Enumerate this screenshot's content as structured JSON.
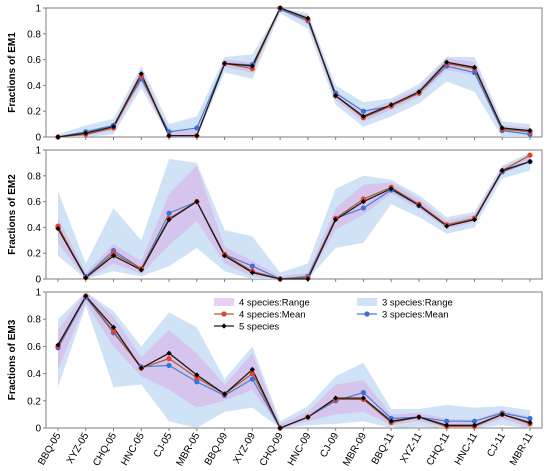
{
  "chart_data": {
    "type": "line",
    "categories": [
      "BBQ-05",
      "XYZ-05",
      "CHQ-05",
      "HNC-05",
      "CJ-05",
      "MBR-05",
      "BBQ-09",
      "XYZ-09",
      "CHQ-09",
      "HNC-09",
      "CJ-09",
      "MBR-09",
      "BBQ-11",
      "XYZ-11",
      "CHQ-11",
      "HNC-11",
      "CJ-11",
      "MBR-11"
    ],
    "legend": {
      "placement": "top-center",
      "entries": [
        "4 species:Range",
        "3 species:Range",
        "4 species:Mean",
        "3 species:Mean",
        "5 species"
      ]
    },
    "colors": {
      "range4": "#d8b0e8",
      "range3": "#c8def5",
      "mean4": "#e8402a",
      "mean4_line": "#b05a2a",
      "mean3": "#3a6fe0",
      "mean3_line": "#4a7fd0",
      "s5": "#000000",
      "s5_line": "#1a1a1a"
    },
    "panels": [
      {
        "ylabel": "Fractions of EM1",
        "ylim": [
          0,
          1
        ],
        "yticks": [
          "0",
          "0.2",
          "0.4",
          "0.6",
          "0.8",
          "1"
        ],
        "yvals": [
          0,
          0.2,
          0.4,
          0.6,
          0.8,
          1
        ],
        "show_xlabels": false,
        "show_legend": false,
        "series": {
          "s5": [
            0.0,
            0.03,
            0.08,
            0.49,
            0.01,
            0.01,
            0.57,
            0.55,
            1.0,
            0.92,
            0.32,
            0.16,
            0.25,
            0.35,
            0.58,
            0.54,
            0.07,
            0.05
          ],
          "mean4": [
            0.0,
            0.02,
            0.07,
            0.47,
            0.01,
            0.01,
            0.57,
            0.53,
            1.0,
            0.91,
            0.32,
            0.15,
            0.24,
            0.34,
            0.57,
            0.53,
            0.06,
            0.04
          ],
          "mean3": [
            0.0,
            0.04,
            0.09,
            0.45,
            0.04,
            0.07,
            0.57,
            0.56,
            0.99,
            0.9,
            0.34,
            0.2,
            0.24,
            0.34,
            0.55,
            0.5,
            0.05,
            0.02
          ],
          "range4_lo": [
            0.0,
            0.01,
            0.05,
            0.42,
            0.0,
            0.0,
            0.54,
            0.5,
            0.98,
            0.88,
            0.29,
            0.12,
            0.21,
            0.31,
            0.52,
            0.48,
            0.04,
            0.02
          ],
          "range4_hi": [
            0.01,
            0.05,
            0.1,
            0.52,
            0.05,
            0.06,
            0.6,
            0.58,
            1.0,
            0.94,
            0.36,
            0.2,
            0.28,
            0.38,
            0.61,
            0.58,
            0.09,
            0.07
          ],
          "range3_lo": [
            0.0,
            0.0,
            0.02,
            0.38,
            0.0,
            0.0,
            0.5,
            0.45,
            0.96,
            0.84,
            0.25,
            0.08,
            0.16,
            0.26,
            0.43,
            0.35,
            0.0,
            0.0
          ],
          "range3_hi": [
            0.02,
            0.09,
            0.14,
            0.55,
            0.1,
            0.16,
            0.62,
            0.64,
            1.0,
            0.96,
            0.4,
            0.27,
            0.3,
            0.41,
            0.62,
            0.62,
            0.12,
            0.1
          ]
        }
      },
      {
        "ylabel": "Fractions of EM2",
        "ylim": [
          0,
          1
        ],
        "yticks": [
          "0",
          "0.2",
          "0.4",
          "0.6",
          "0.8",
          "1"
        ],
        "yvals": [
          0,
          0.2,
          0.4,
          0.6,
          0.8,
          1
        ],
        "show_xlabels": false,
        "show_legend": false,
        "series": {
          "s5": [
            0.39,
            0.01,
            0.18,
            0.07,
            0.46,
            0.6,
            0.18,
            0.05,
            0.0,
            0.0,
            0.46,
            0.6,
            0.7,
            0.57,
            0.41,
            0.46,
            0.84,
            0.91
          ],
          "mean4": [
            0.41,
            0.01,
            0.2,
            0.08,
            0.47,
            0.6,
            0.19,
            0.06,
            0.0,
            0.01,
            0.47,
            0.62,
            0.71,
            0.58,
            0.42,
            0.47,
            0.84,
            0.96
          ],
          "mean3": [
            0.4,
            0.02,
            0.22,
            0.08,
            0.51,
            0.6,
            0.19,
            0.1,
            0.0,
            0.02,
            0.47,
            0.55,
            0.69,
            0.57,
            0.42,
            0.47,
            0.83,
            0.91
          ],
          "range4_lo": [
            0.28,
            0.0,
            0.12,
            0.04,
            0.26,
            0.45,
            0.12,
            0.02,
            0.0,
            0.0,
            0.38,
            0.5,
            0.66,
            0.54,
            0.39,
            0.44,
            0.82,
            0.9
          ],
          "range4_hi": [
            0.47,
            0.05,
            0.27,
            0.14,
            0.66,
            0.88,
            0.25,
            0.14,
            0.02,
            0.05,
            0.55,
            0.73,
            0.75,
            0.62,
            0.45,
            0.5,
            0.87,
            0.96
          ],
          "range3_lo": [
            0.18,
            0.0,
            0.06,
            0.02,
            0.1,
            0.24,
            0.06,
            0.0,
            0.0,
            0.0,
            0.24,
            0.28,
            0.58,
            0.48,
            0.35,
            0.4,
            0.78,
            0.84
          ],
          "range3_hi": [
            0.68,
            0.12,
            0.55,
            0.3,
            0.93,
            0.9,
            0.38,
            0.33,
            0.05,
            0.12,
            0.7,
            0.8,
            0.77,
            0.65,
            0.48,
            0.52,
            0.88,
            0.98
          ]
        }
      },
      {
        "ylabel": "Fractions of EM3",
        "ylim": [
          0,
          1
        ],
        "yticks": [
          "0",
          "0.2",
          "0.4",
          "0.6",
          "0.8",
          "1"
        ],
        "yvals": [
          0,
          0.2,
          0.4,
          0.6,
          0.8,
          1
        ],
        "show_xlabels": true,
        "show_legend": true,
        "series": {
          "s5": [
            0.61,
            0.97,
            0.74,
            0.44,
            0.55,
            0.39,
            0.25,
            0.43,
            0.0,
            0.08,
            0.22,
            0.22,
            0.05,
            0.08,
            0.02,
            0.02,
            0.1,
            0.04
          ],
          "mean4": [
            0.6,
            0.97,
            0.71,
            0.44,
            0.51,
            0.37,
            0.25,
            0.4,
            0.0,
            0.08,
            0.21,
            0.21,
            0.04,
            0.08,
            0.01,
            0.01,
            0.1,
            0.03
          ],
          "mean3": [
            0.59,
            0.96,
            0.7,
            0.45,
            0.46,
            0.34,
            0.24,
            0.36,
            0.0,
            0.08,
            0.2,
            0.26,
            0.07,
            0.08,
            0.05,
            0.05,
            0.11,
            0.07
          ],
          "range4_lo": [
            0.43,
            0.92,
            0.6,
            0.38,
            0.28,
            0.15,
            0.2,
            0.28,
            0.0,
            0.05,
            0.1,
            0.12,
            0.02,
            0.05,
            0.0,
            0.0,
            0.07,
            0.0
          ],
          "range4_hi": [
            0.72,
            1.0,
            0.82,
            0.52,
            0.72,
            0.55,
            0.32,
            0.55,
            0.03,
            0.12,
            0.32,
            0.35,
            0.1,
            0.11,
            0.07,
            0.06,
            0.13,
            0.08
          ],
          "range3_lo": [
            0.3,
            0.9,
            0.3,
            0.32,
            0.05,
            0.0,
            0.12,
            0.15,
            0.0,
            0.02,
            0.03,
            0.05,
            0.0,
            0.01,
            0.0,
            0.0,
            0.02,
            0.0
          ],
          "range3_hi": [
            0.8,
            1.0,
            0.86,
            0.6,
            0.85,
            0.74,
            0.36,
            0.6,
            0.05,
            0.16,
            0.38,
            0.48,
            0.14,
            0.14,
            0.17,
            0.15,
            0.16,
            0.13
          ]
        }
      }
    ]
  }
}
